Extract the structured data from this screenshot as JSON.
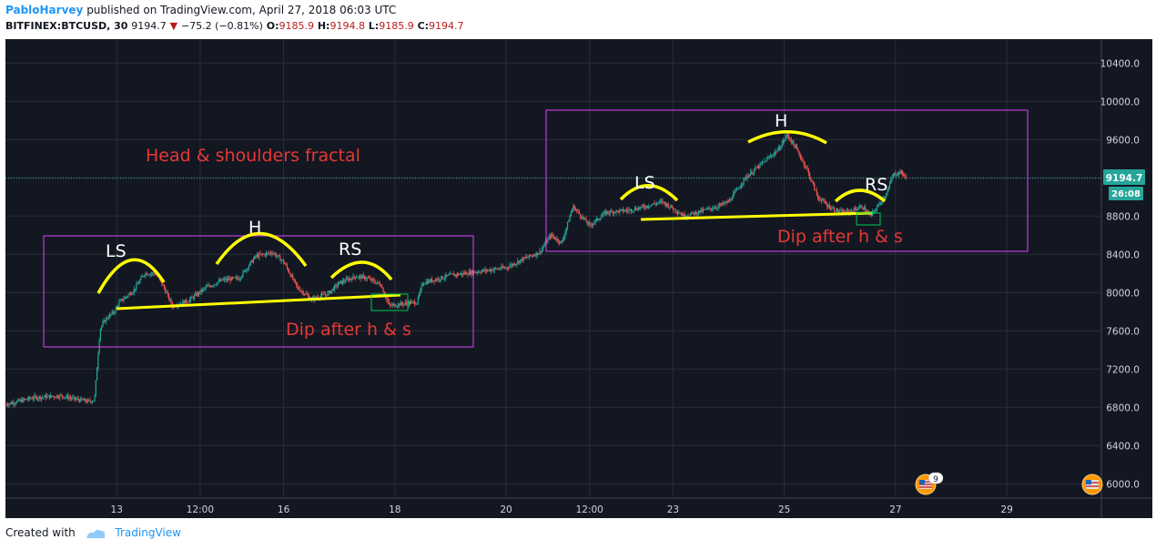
{
  "header": {
    "author": "PabloHarvey",
    "published_text": "published on TradingView.com, April 27, 2018 06:03 UTC",
    "symbol": "BITFINEX:BTCUSD, 30",
    "last": "9194.7",
    "change": "−75.2 (−0.81%)",
    "o_label": "O:",
    "o_value": "9185.9",
    "h_label": "H:",
    "h_value": "9194.8",
    "l_label": "L:",
    "l_value": "9185.9",
    "c_label": "C:",
    "c_value": "9194.7"
  },
  "footer": {
    "created_with": "Created with",
    "brand": "TradingView"
  },
  "price_tag": {
    "value": "9194.7",
    "timer": "26:08"
  },
  "event_badge": "9",
  "annotations": {
    "title": "Head & shoulders fractal",
    "left": {
      "ls": "LS",
      "h": "H",
      "rs": "RS",
      "dip": "Dip after h & s"
    },
    "right": {
      "ls": "LS",
      "h": "H",
      "rs": "RS",
      "dip": "Dip after h & s"
    }
  },
  "colors": {
    "background": "#131722",
    "up": "#26a69a",
    "down": "#ef5350",
    "shape_yellow": "#ffff00",
    "box_magenta": "#e040fb",
    "green_box": "#00c853",
    "text_red": "#e53935",
    "price_tag": "#26a69a"
  },
  "chart_data": {
    "type": "candlestick",
    "symbol": "BITFINEX:BTCUSD",
    "interval": "30",
    "y_ticks": [
      6000.0,
      6400.0,
      6800.0,
      7200.0,
      7600.0,
      8000.0,
      8400.0,
      8800.0,
      9200.0,
      9600.0,
      10000.0,
      10400.0
    ],
    "y_tick_labels": [
      "6000.0",
      "6400.0",
      "6800.0",
      "7200.0",
      "7600.0",
      "8000.0",
      "8400.0",
      "8800.0",
      "9200.0",
      "9600.0",
      "10000.0",
      "10400.0"
    ],
    "x_ticks": [
      {
        "label": "13",
        "day": 13.0
      },
      {
        "label": "12:00",
        "day": 14.5
      },
      {
        "label": "16",
        "day": 16.0
      },
      {
        "label": "18",
        "day": 18.0
      },
      {
        "label": "20",
        "day": 20.0
      },
      {
        "label": "12:00",
        "day": 21.5
      },
      {
        "label": "23",
        "day": 23.0
      },
      {
        "label": "25",
        "day": 25.0
      },
      {
        "label": "27",
        "day": 27.0
      },
      {
        "label": "29",
        "day": 29.0
      }
    ],
    "x_range_days": [
      11.0,
      30.7
    ],
    "y_range": [
      5850,
      10650
    ],
    "last_price": 9194.7,
    "price_path": [
      [
        11.0,
        6830
      ],
      [
        11.5,
        6900
      ],
      [
        12.0,
        6920
      ],
      [
        12.3,
        6880
      ],
      [
        12.5,
        6860
      ],
      [
        12.6,
        6880
      ],
      [
        12.7,
        7620
      ],
      [
        12.8,
        7720
      ],
      [
        12.95,
        7800
      ],
      [
        13.05,
        7900
      ],
      [
        13.3,
        8020
      ],
      [
        13.5,
        8200
      ],
      [
        13.7,
        8200
      ],
      [
        13.85,
        8050
      ],
      [
        14.0,
        7860
      ],
      [
        14.3,
        7920
      ],
      [
        14.6,
        8050
      ],
      [
        14.9,
        8130
      ],
      [
        15.2,
        8150
      ],
      [
        15.5,
        8380
      ],
      [
        15.8,
        8420
      ],
      [
        16.0,
        8320
      ],
      [
        16.25,
        8050
      ],
      [
        16.5,
        7930
      ],
      [
        16.8,
        7990
      ],
      [
        17.0,
        8100
      ],
      [
        17.3,
        8170
      ],
      [
        17.5,
        8150
      ],
      [
        17.75,
        8080
      ],
      [
        17.9,
        7860
      ],
      [
        18.1,
        7880
      ],
      [
        18.4,
        7900
      ],
      [
        18.5,
        8100
      ],
      [
        19.0,
        8180
      ],
      [
        19.5,
        8220
      ],
      [
        20.0,
        8260
      ],
      [
        20.3,
        8350
      ],
      [
        20.6,
        8420
      ],
      [
        20.8,
        8600
      ],
      [
        21.0,
        8520
      ],
      [
        21.2,
        8900
      ],
      [
        21.5,
        8700
      ],
      [
        21.8,
        8840
      ],
      [
        22.2,
        8860
      ],
      [
        22.5,
        8900
      ],
      [
        22.8,
        8950
      ],
      [
        23.0,
        8880
      ],
      [
        23.2,
        8800
      ],
      [
        23.5,
        8850
      ],
      [
        23.8,
        8900
      ],
      [
        24.0,
        8950
      ],
      [
        24.3,
        9200
      ],
      [
        24.6,
        9350
      ],
      [
        24.9,
        9500
      ],
      [
        25.05,
        9650
      ],
      [
        25.2,
        9520
      ],
      [
        25.4,
        9300
      ],
      [
        25.6,
        9000
      ],
      [
        25.8,
        8900
      ],
      [
        26.0,
        8840
      ],
      [
        26.2,
        8850
      ],
      [
        26.4,
        8900
      ],
      [
        26.55,
        8800
      ],
      [
        26.7,
        8920
      ],
      [
        26.85,
        9050
      ],
      [
        26.95,
        9230
      ],
      [
        27.1,
        9260
      ],
      [
        27.2,
        9194.7
      ]
    ]
  }
}
